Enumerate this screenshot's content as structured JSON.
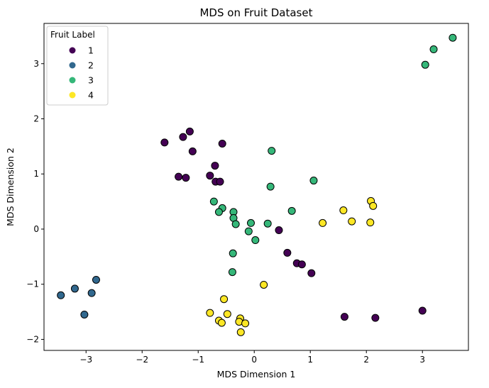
{
  "chart_data": {
    "type": "scatter",
    "title": "MDS on Fruit Dataset",
    "xlabel": "MDS Dimension 1",
    "ylabel": "MDS Dimension 2",
    "xlim": [
      -3.75,
      3.82
    ],
    "ylim": [
      -2.2,
      3.73
    ],
    "xticks": [
      -3,
      -2,
      -1,
      0,
      1,
      2,
      3
    ],
    "yticks": [
      -2,
      -1,
      0,
      1,
      2,
      3
    ],
    "grid": false,
    "legend": {
      "title": "Fruit Label",
      "position": "top-left"
    },
    "series": [
      {
        "name": "1",
        "color": "#440154",
        "points": [
          [
            -1.6,
            1.57
          ],
          [
            -1.27,
            1.67
          ],
          [
            -1.15,
            1.77
          ],
          [
            -1.1,
            1.41
          ],
          [
            -1.35,
            0.95
          ],
          [
            -1.22,
            0.93
          ],
          [
            -0.57,
            1.55
          ],
          [
            -0.7,
            1.15
          ],
          [
            -0.79,
            0.97
          ],
          [
            -0.69,
            0.86
          ],
          [
            -0.61,
            0.86
          ],
          [
            0.44,
            -0.02
          ],
          [
            0.59,
            -0.43
          ],
          [
            0.76,
            -0.62
          ],
          [
            0.85,
            -0.64
          ],
          [
            1.02,
            -0.8
          ],
          [
            1.61,
            -1.59
          ],
          [
            2.16,
            -1.61
          ],
          [
            3.0,
            -1.48
          ]
        ]
      },
      {
        "name": "2",
        "color": "#31688e",
        "points": [
          [
            -3.45,
            -1.2
          ],
          [
            -3.2,
            -1.08
          ],
          [
            -2.82,
            -0.92
          ],
          [
            -2.9,
            -1.16
          ],
          [
            -3.03,
            -1.55
          ]
        ]
      },
      {
        "name": "3",
        "color": "#35b779",
        "points": [
          [
            3.05,
            2.98
          ],
          [
            3.2,
            3.26
          ],
          [
            3.54,
            3.47
          ],
          [
            0.31,
            1.42
          ],
          [
            1.06,
            0.88
          ],
          [
            0.29,
            0.77
          ],
          [
            -0.72,
            0.5
          ],
          [
            -0.57,
            0.38
          ],
          [
            -0.63,
            0.31
          ],
          [
            -0.37,
            0.31
          ],
          [
            -0.37,
            0.2
          ],
          [
            -0.33,
            0.09
          ],
          [
            -0.06,
            0.11
          ],
          [
            0.24,
            0.1
          ],
          [
            0.67,
            0.33
          ],
          [
            -0.1,
            -0.04
          ],
          [
            0.02,
            -0.2
          ],
          [
            -0.38,
            -0.44
          ],
          [
            -0.39,
            -0.78
          ]
        ]
      },
      {
        "name": "4",
        "color": "#fde725",
        "points": [
          [
            2.08,
            0.51
          ],
          [
            2.12,
            0.42
          ],
          [
            1.59,
            0.34
          ],
          [
            1.74,
            0.14
          ],
          [
            2.07,
            0.12
          ],
          [
            1.22,
            0.11
          ],
          [
            0.17,
            -1.01
          ],
          [
            -0.54,
            -1.27
          ],
          [
            -0.79,
            -1.52
          ],
          [
            -0.48,
            -1.54
          ],
          [
            -0.63,
            -1.66
          ],
          [
            -0.58,
            -1.7
          ],
          [
            -0.25,
            -1.62
          ],
          [
            -0.27,
            -1.68
          ],
          [
            -0.16,
            -1.71
          ],
          [
            -0.24,
            -1.87
          ]
        ]
      }
    ]
  }
}
